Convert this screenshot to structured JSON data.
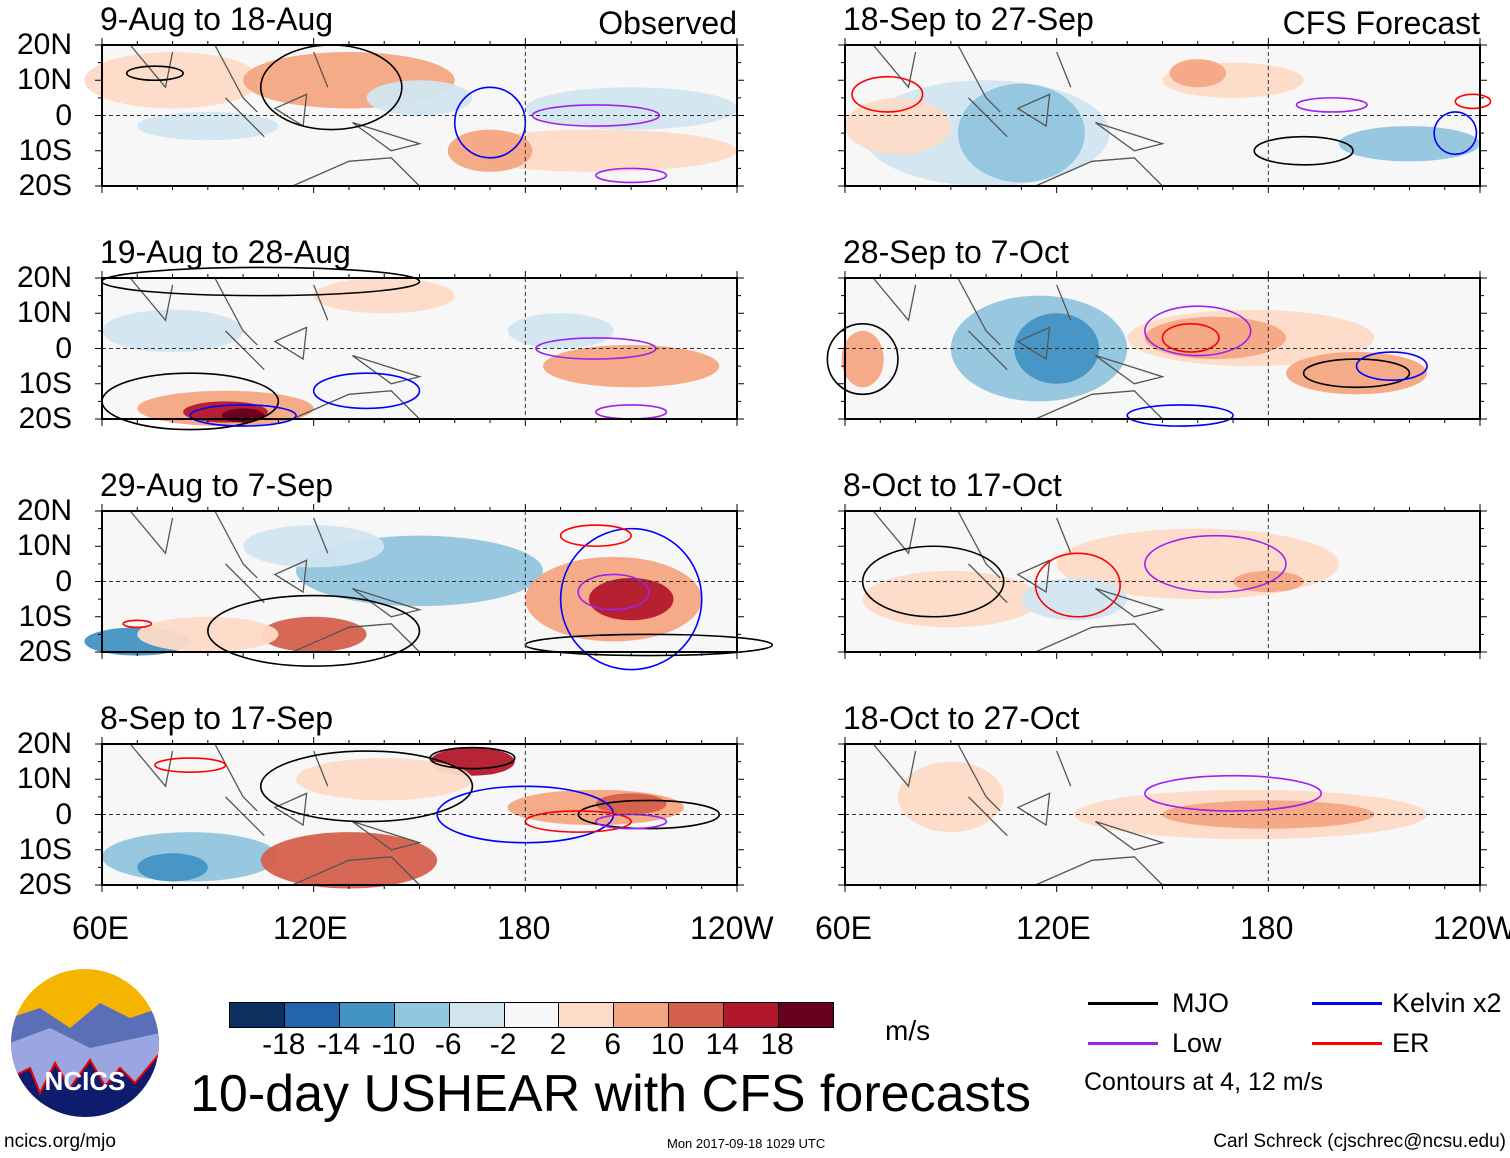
{
  "panels": [
    {
      "title": "9-Aug to 18-Aug",
      "tag": "Observed"
    },
    {
      "title": "18-Sep to 27-Sep",
      "tag": "CFS Forecast"
    },
    {
      "title": "19-Aug to 28-Aug",
      "tag": ""
    },
    {
      "title": "28-Sep to 7-Oct",
      "tag": ""
    },
    {
      "title": "29-Aug to 7-Sep",
      "tag": ""
    },
    {
      "title": "8-Oct to 17-Oct",
      "tag": ""
    },
    {
      "title": "8-Sep to 17-Sep",
      "tag": ""
    },
    {
      "title": "18-Oct to 27-Oct",
      "tag": ""
    }
  ],
  "chart_data": {
    "type": "heatmap",
    "title": "10-day USHEAR with CFS forecasts",
    "variable": "USHEAR",
    "units": "m/s",
    "lat_ticks": [
      "20N",
      "10N",
      "0",
      "10S",
      "20S"
    ],
    "lon_ticks": [
      "60E",
      "120E",
      "180",
      "120W"
    ],
    "lat_range": [
      -20,
      20
    ],
    "lon_range": [
      60,
      240
    ],
    "colorbar": {
      "levels": [
        "-18",
        "-14",
        "-10",
        "-6",
        "-2",
        "2",
        "6",
        "10",
        "14",
        "18"
      ],
      "colors": [
        "#0b2f5f",
        "#2166ac",
        "#4393c3",
        "#92c5de",
        "#d1e5f0",
        "#f7f7f7",
        "#fddbc7",
        "#f4a582",
        "#d6604d",
        "#b2182b",
        "#67001f"
      ]
    },
    "contour_legend": [
      {
        "label": "MJO",
        "color": "#000000"
      },
      {
        "label": "Kelvin x2",
        "color": "#0000ff"
      },
      {
        "label": "Low",
        "color": "#a020f0"
      },
      {
        "label": "ER",
        "color": "#ff0000"
      }
    ],
    "contour_note": "Contours at 4, 12 m/s"
  },
  "footer": {
    "logo_text": "NCICS",
    "url": "ncics.org/mjo",
    "timestamp": "Mon 2017-09-18 1029 UTC",
    "credit": "Carl Schreck (cjschrec@ncsu.edu)"
  }
}
